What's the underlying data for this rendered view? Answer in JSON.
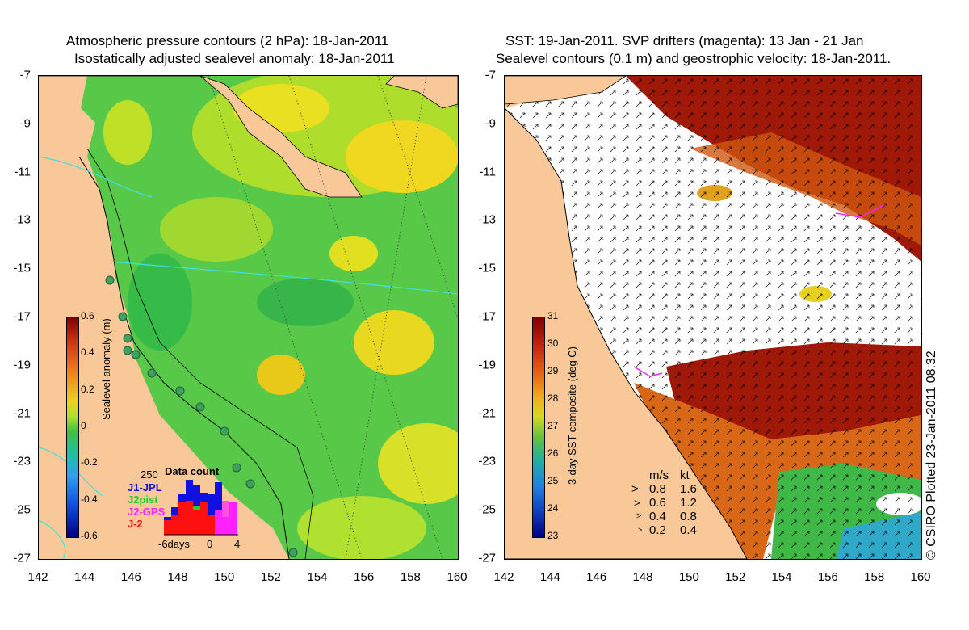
{
  "left_panel": {
    "title_line1": "Atmospheric pressure contours (2 hPa): 18-Jan-2011",
    "title_line2": "Isostatically adjusted sealevel anomaly: 18-Jan-2011",
    "colorbar": {
      "label": "Sealevel anomaly (m)",
      "ticks": [
        "0.6",
        "0.4",
        "0.2",
        "0",
        "-0.2",
        "-0.4",
        "-0.6"
      ]
    },
    "data_count": {
      "title": "Data count",
      "max_label": "250",
      "legend": [
        {
          "name": "J1-JPL",
          "color": "#1010e0"
        },
        {
          "name": "J2pist",
          "color": "#20d020"
        },
        {
          "name": "J2-GPS",
          "color": "#ff20ff"
        },
        {
          "name": "J-2",
          "color": "#ff1010"
        }
      ],
      "axis_labels": [
        "-6days",
        "0",
        "4"
      ]
    }
  },
  "right_panel": {
    "title_line1": "SST: 19-Jan-2011. SVP drifters (magenta): 13 Jan - 21 Jan",
    "title_line2": "Sealevel contours (0.1 m) and geostrophic velocity: 18-Jan-2011.",
    "colorbar": {
      "label": "3-day SST composite (deg C)",
      "ticks": [
        "31",
        "30",
        "29",
        "28",
        "27",
        "26",
        "25",
        "24",
        "23"
      ]
    },
    "velocity_legend": {
      "header_ms": "m/s",
      "header_kt": "kt",
      "rows": [
        {
          "ms": "0.8",
          "kt": "1.6"
        },
        {
          "ms": "0.6",
          "kt": "1.2"
        },
        {
          "ms": "0.4",
          "kt": "0.8"
        },
        {
          "ms": "0.2",
          "kt": "0.4"
        }
      ]
    }
  },
  "axes": {
    "lat_labels": [
      "-7",
      "-9",
      "-11",
      "-13",
      "-15",
      "-17",
      "-19",
      "-21",
      "-23",
      "-25",
      "-27"
    ],
    "lon_labels": [
      "142",
      "144",
      "146",
      "148",
      "150",
      "152",
      "154",
      "156",
      "158",
      "160"
    ]
  },
  "credit": "© CSIRO Plotted 23-Jan-2011 08:32",
  "colors": {
    "land": "#f8c898",
    "sst_warm": "#a01808",
    "sla_mid": "#40c040"
  }
}
